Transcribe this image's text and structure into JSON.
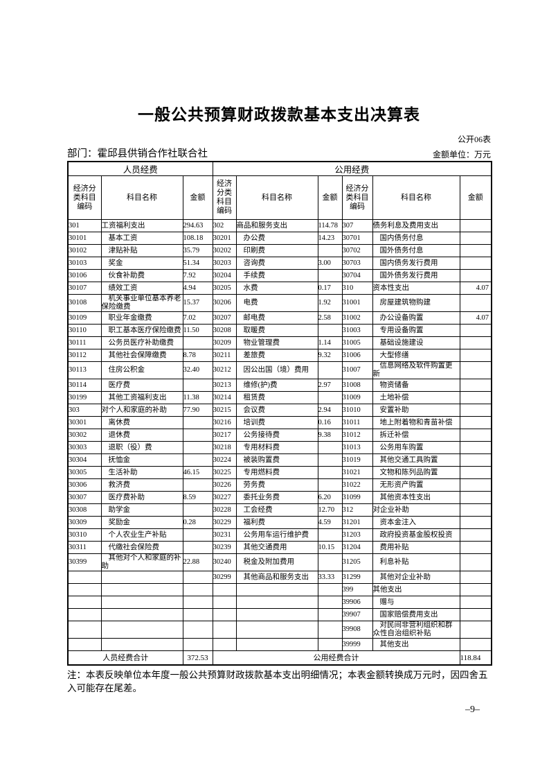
{
  "page": {
    "title": "一般公共预算财政拨款基本支出决算表",
    "table_no": "公开06表",
    "department": "部门：霍邱县供销合作社联合社",
    "unit": "金额单位：万元",
    "note": "注：本表反映单位本年度一般公共预算财政拨款基本支出明细情况；本表金额转换成万元时，因四舍五入可能存在尾差。",
    "page_number": "–9–"
  },
  "table": {
    "group_headers": [
      "人员经费",
      "公用经费"
    ],
    "column_headers": [
      "经济分\n类科目\n编码",
      "科目名称",
      "金额",
      "经济\n分类\n科目\n编码",
      "科目名称",
      "金额",
      "经济分\n类科目\n编码",
      "科目名称",
      "金额"
    ],
    "rows": [
      [
        "301",
        "工资福利支出",
        "294.63",
        "302",
        "商品和服务支出",
        "114.78",
        "307",
        "债务利息及费用支出",
        ""
      ],
      [
        "30101",
        "基本工资",
        "108.18",
        "30201",
        "办公费",
        "14.23",
        "30701",
        "国内债务付息",
        ""
      ],
      [
        "30102",
        "津贴补贴",
        "35.79",
        "30202",
        "印刷费",
        "",
        "30702",
        "国外债务付息",
        ""
      ],
      [
        "30103",
        "奖金",
        "51.34",
        "30203",
        "咨询费",
        "3.00",
        "30703",
        "国内债务发行费用",
        ""
      ],
      [
        "30106",
        "伙食补助费",
        "7.92",
        "30204",
        "手续费",
        "",
        "30704",
        "国外债务发行费用",
        ""
      ],
      [
        "30107",
        "绩效工资",
        "4.94",
        "30205",
        "水费",
        "0.17",
        "310",
        "资本性支出",
        "4.07"
      ],
      [
        "30108",
        "机关事业单位基本养老保险缴费",
        "15.37",
        "30206",
        "电费",
        "1.92",
        "31001",
        "房屋建筑物购建",
        ""
      ],
      [
        "30109",
        "职业年金缴费",
        "7.02",
        "30207",
        "邮电费",
        "2.58",
        "31002",
        "办公设备购置",
        "4.07"
      ],
      [
        "30110",
        "职工基本医疗保险缴费",
        "11.50",
        "30208",
        "取暖费",
        "",
        "31003",
        "专用设备购置",
        ""
      ],
      [
        "30111",
        "公务员医疗补助缴费",
        "",
        "30209",
        "物业管理费",
        "1.14",
        "31005",
        "基础设施建设",
        ""
      ],
      [
        "30112",
        "其他社会保障缴费",
        "8.78",
        "30211",
        "差旅费",
        "9.32",
        "31006",
        "大型修缮",
        ""
      ],
      [
        "30113",
        "住房公积金",
        "32.40",
        "30212",
        "因公出国（境）费用",
        "",
        "31007",
        "信息网络及软件购置更新",
        ""
      ],
      [
        "30114",
        "医疗费",
        "",
        "30213",
        "维修(护)费",
        "2.97",
        "31008",
        "物资储备",
        ""
      ],
      [
        "30199",
        "其他工资福利支出",
        "11.38",
        "30214",
        "租赁费",
        "",
        "31009",
        "土地补偿",
        ""
      ],
      [
        "303",
        "对个人和家庭的补助",
        "77.90",
        "30215",
        "会议费",
        "2.94",
        "31010",
        "安置补助",
        ""
      ],
      [
        "30301",
        "离休费",
        "",
        "30216",
        "培训费",
        "0.16",
        "31011",
        "地上附着物和青苗补偿",
        ""
      ],
      [
        "30302",
        "退休费",
        "",
        "30217",
        "公务接待费",
        "9.38",
        "31012",
        "拆迁补偿",
        ""
      ],
      [
        "30303",
        "退职（役）费",
        "",
        "30218",
        "专用材料费",
        "",
        "31013",
        "公务用车购置",
        ""
      ],
      [
        "30304",
        "抚恤金",
        "",
        "30224",
        "被装购置费",
        "",
        "31019",
        "其他交通工具购置",
        ""
      ],
      [
        "30305",
        "生活补助",
        "46.15",
        "30225",
        "专用燃料费",
        "",
        "31021",
        "文物和陈列品购置",
        ""
      ],
      [
        "30306",
        "救济费",
        "",
        "30226",
        "劳务费",
        "",
        "31022",
        "无形资产购置",
        ""
      ],
      [
        "30307",
        "医疗费补助",
        "8.59",
        "30227",
        "委托业务费",
        "6.20",
        "31099",
        "其他资本性支出",
        ""
      ],
      [
        "30308",
        "助学金",
        "",
        "30228",
        "工会经费",
        "12.70",
        "312",
        "对企业补助",
        ""
      ],
      [
        "30309",
        "奖励金",
        "0.28",
        "30229",
        "福利费",
        "4.59",
        "31201",
        "资本金注入",
        ""
      ],
      [
        "30310",
        "个人农业生产补贴",
        "",
        "30231",
        "公务用车运行维护费",
        "",
        "31203",
        "政府投资基金股权投资",
        ""
      ],
      [
        "30311",
        "代缴社会保险费",
        "",
        "30239",
        "其他交通费用",
        "10.15",
        "31204",
        "费用补贴",
        ""
      ],
      [
        "30399",
        "其他对个人和家庭的补助",
        "22.88",
        "30240",
        "税金及附加费用",
        "",
        "31205",
        "利息补贴",
        ""
      ],
      [
        "",
        "",
        "",
        "30299",
        "其他商品和服务支出",
        "33.33",
        "31299",
        "其他对企业补助",
        ""
      ],
      [
        "",
        "",
        "",
        "",
        "",
        "",
        "399",
        "其他支出",
        ""
      ],
      [
        "",
        "",
        "",
        "",
        "",
        "",
        "39906",
        "赠与",
        ""
      ],
      [
        "",
        "",
        "",
        "",
        "",
        "",
        "39907",
        "国家赔偿费用支出",
        ""
      ],
      [
        "",
        "",
        "",
        "",
        "",
        "",
        "39908",
        "对民间非营利组织和群众性自治组织补贴",
        ""
      ],
      [
        "",
        "",
        "",
        "",
        "",
        "",
        "39999",
        "其他支出",
        ""
      ]
    ],
    "footer": {
      "personnel_total_label": "人员经费合计",
      "personnel_total": "372.53",
      "public_total_label": "公用经费合计",
      "public_total": "118.84"
    }
  }
}
